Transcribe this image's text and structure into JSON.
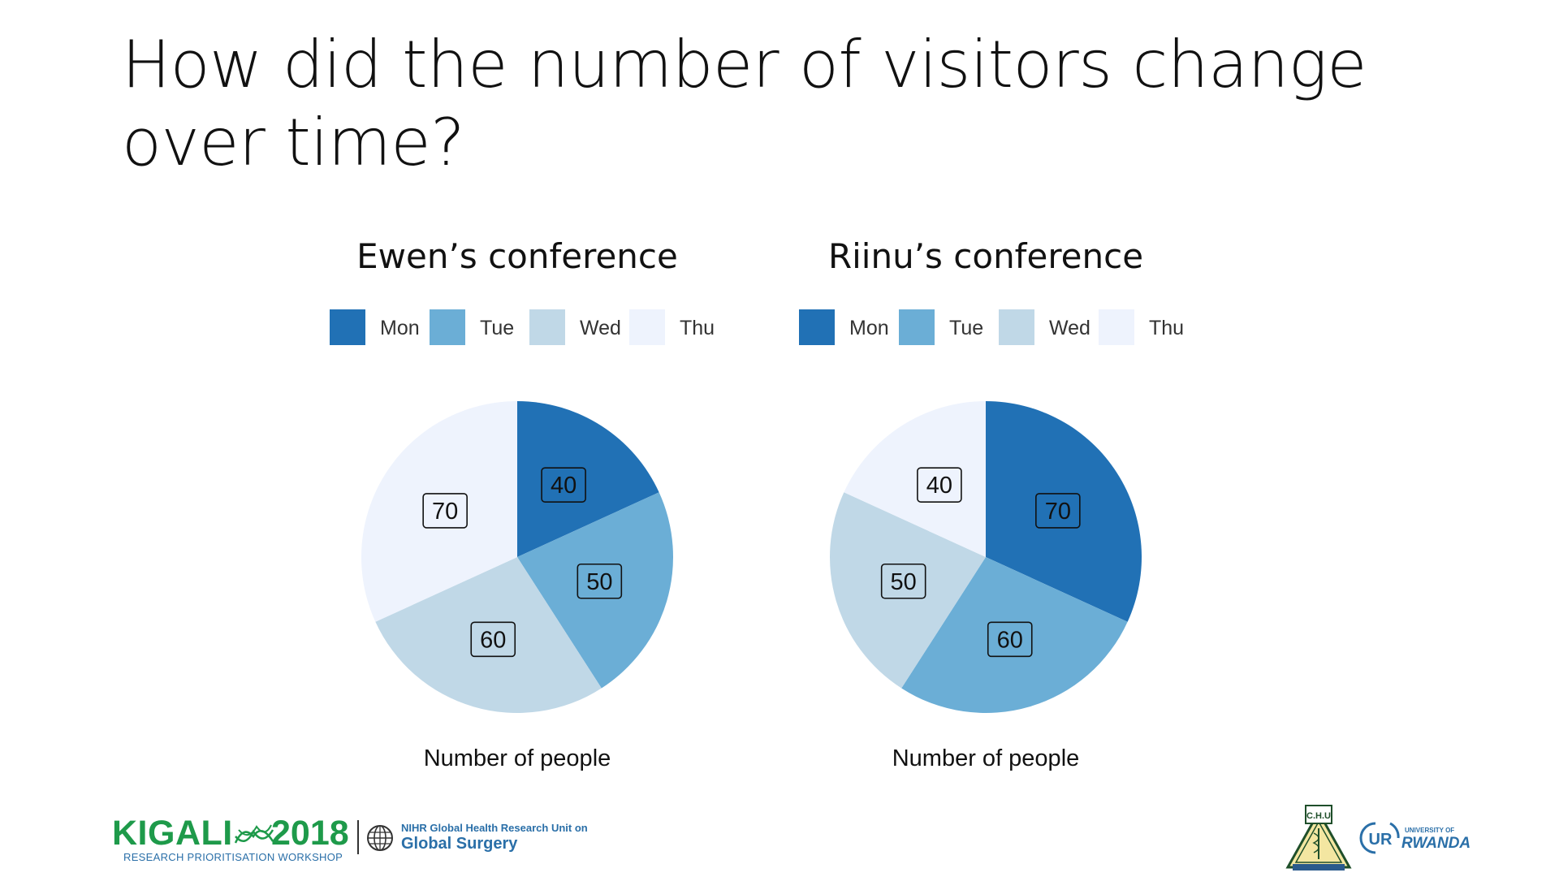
{
  "slide": {
    "title": "How did the number of visitors change over time?"
  },
  "colors": {
    "Mon": "#2171b5",
    "Tue": "#6baed6",
    "Wed": "#c0d8e7",
    "Thu": "#eef3fd"
  },
  "chart_data": [
    {
      "type": "pie",
      "title": "Ewen’s conference",
      "xlabel": "Number of people",
      "legend_placement": "top",
      "categories": [
        "Mon",
        "Tue",
        "Wed",
        "Thu"
      ],
      "values": [
        40,
        50,
        60,
        70
      ]
    },
    {
      "type": "pie",
      "title": "Riinu’s conference",
      "xlabel": "Number of people",
      "legend_placement": "top",
      "categories": [
        "Mon",
        "Tue",
        "Wed",
        "Thu"
      ],
      "values": [
        70,
        60,
        50,
        40
      ]
    }
  ],
  "footer": {
    "kigali_word": "KIGALI",
    "kigali_year": "2018",
    "kigali_sub": "RESEARCH PRIORITISATION WORKSHOP",
    "nihr_line1": "NIHR Global Health Research Unit on",
    "nihr_line2": "Global Surgery",
    "chu_text": "C.H.U",
    "ur_small": "UNIVERSITY OF",
    "ur_mark": "UR",
    "ur_big": "RWANDA"
  }
}
